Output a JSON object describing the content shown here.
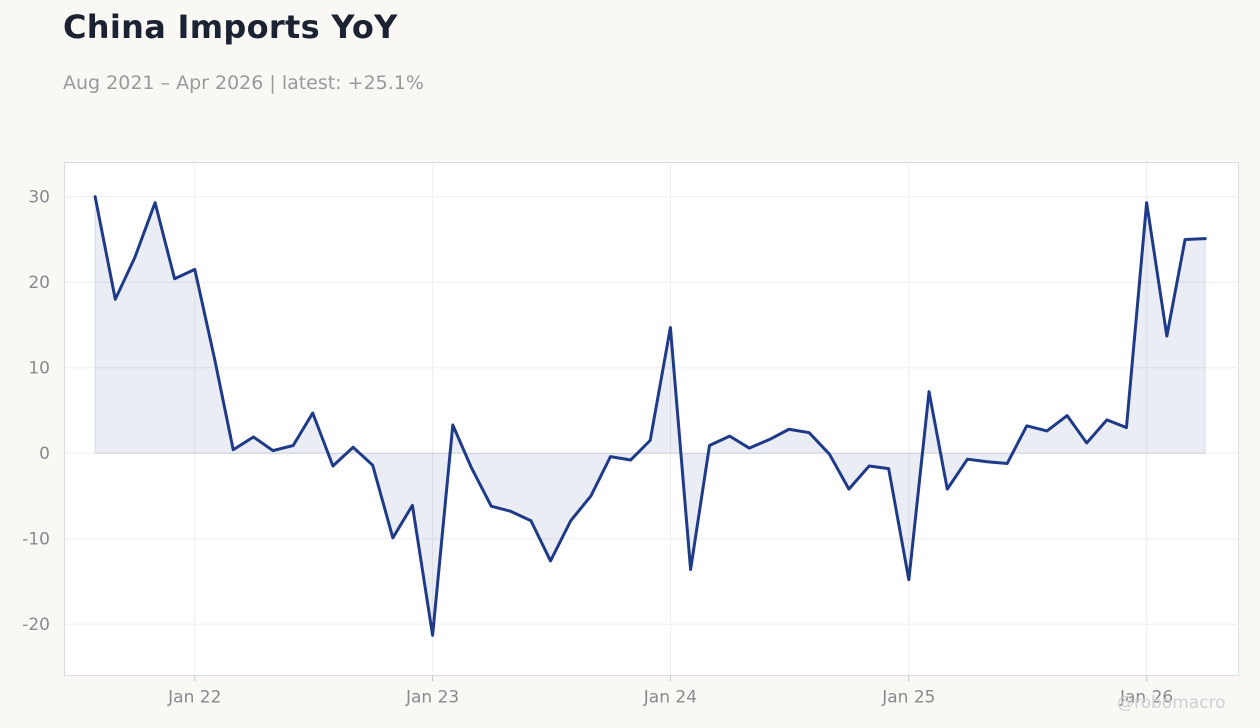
{
  "title": "China Imports YoY",
  "subtitle": "Aug 2021 – Apr 2026 | latest: +25.1%",
  "watermark": "@robomacro",
  "colors": {
    "background": "#f9f8f5",
    "plot_background": "#ffffff",
    "line": "#1f3a87",
    "fill": "#1f3a87",
    "grid": "#eeeeee",
    "text": "#8a8a8a",
    "title": "#1b2333"
  },
  "chart_data": {
    "type": "area",
    "title": "China Imports YoY",
    "subtitle": "Aug 2021 – Apr 2026 | latest: +25.1%",
    "xlabel": "",
    "ylabel": "",
    "ylim": [
      -26,
      34
    ],
    "xlim": [
      "2021-06-15",
      "2026-05-22"
    ],
    "yticks": [
      30,
      20,
      10,
      0,
      -10,
      -20
    ],
    "xticks": [
      {
        "date": "2022-01-01",
        "label": "Jan 22"
      },
      {
        "date": "2023-01-01",
        "label": "Jan 23"
      },
      {
        "date": "2024-01-01",
        "label": "Jan 24"
      },
      {
        "date": "2025-01-01",
        "label": "Jan 25"
      },
      {
        "date": "2026-01-01",
        "label": "Jan 26"
      }
    ],
    "grid": true,
    "legend": "none",
    "x": [
      "2021-08",
      "2021-09",
      "2021-10",
      "2021-11",
      "2021-12",
      "2022-01",
      "2022-02",
      "2022-03",
      "2022-04",
      "2022-05",
      "2022-06",
      "2022-07",
      "2022-08",
      "2022-09",
      "2022-10",
      "2022-11",
      "2022-12",
      "2023-01",
      "2023-02",
      "2023-03",
      "2023-04",
      "2023-05",
      "2023-06",
      "2023-07",
      "2023-08",
      "2023-09",
      "2023-10",
      "2023-11",
      "2023-12",
      "2024-01",
      "2024-02",
      "2024-03",
      "2024-04",
      "2024-05",
      "2024-06",
      "2024-07",
      "2024-08",
      "2024-09",
      "2024-10",
      "2024-11",
      "2024-12",
      "2025-01",
      "2025-02",
      "2025-03",
      "2025-04",
      "2025-05",
      "2025-06",
      "2025-07",
      "2025-08",
      "2025-09",
      "2025-10",
      "2025-11",
      "2025-12",
      "2026-01",
      "2026-02",
      "2026-03",
      "2026-04"
    ],
    "values": [
      30.0,
      18.0,
      22.9,
      29.3,
      20.4,
      21.5,
      10.8,
      0.4,
      1.9,
      0.3,
      0.9,
      4.7,
      -1.5,
      0.7,
      -1.4,
      -9.9,
      -6.1,
      -21.3,
      3.3,
      -1.6,
      -6.2,
      -6.8,
      -7.9,
      -12.6,
      -7.9,
      -5.0,
      -0.4,
      -0.8,
      1.5,
      14.7,
      -13.6,
      0.9,
      2.0,
      0.6,
      1.6,
      2.8,
      2.4,
      -0.1,
      -4.2,
      -1.5,
      -1.8,
      -14.8,
      7.2,
      -4.2,
      -0.7,
      -1.0,
      -1.2,
      3.2,
      2.6,
      4.4,
      1.2,
      3.9,
      3.0,
      29.3,
      13.7,
      25.0,
      25.1
    ]
  }
}
